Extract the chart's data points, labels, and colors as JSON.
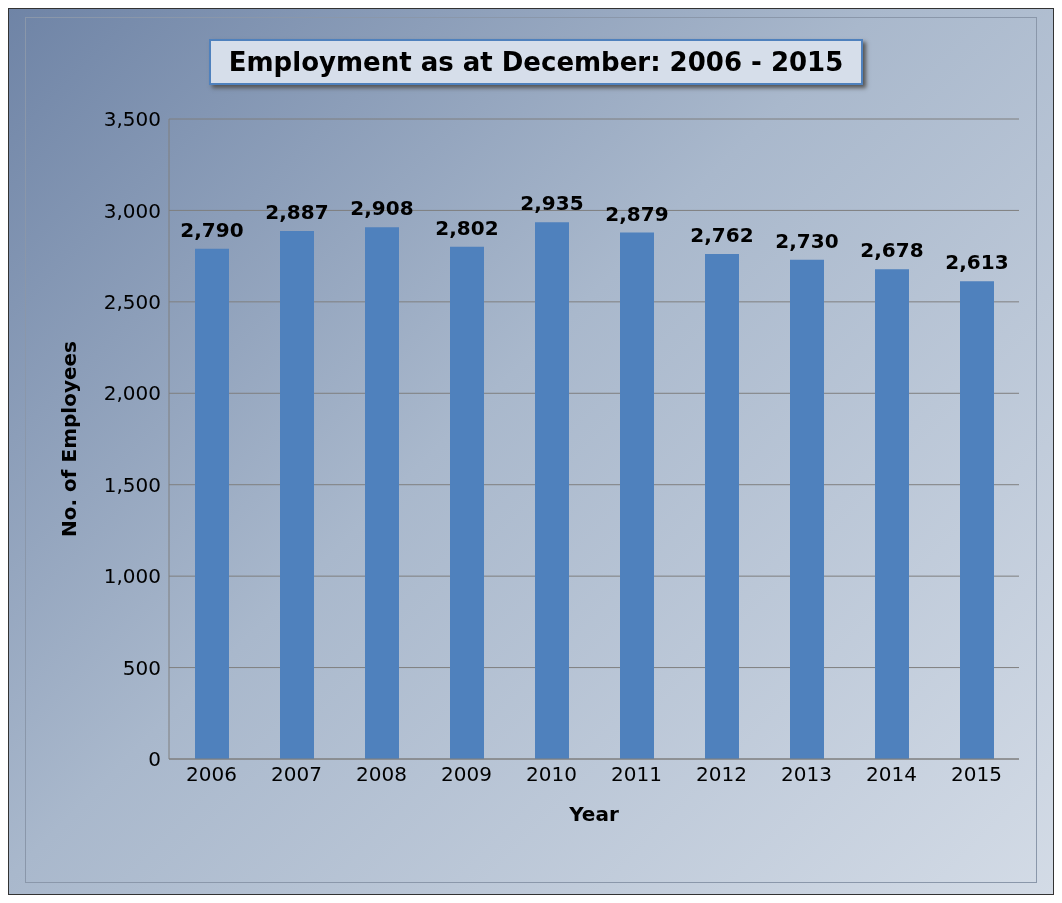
{
  "chart_data": {
    "type": "bar",
    "title": "Employment as at December: 2006 - 2015",
    "xlabel": "Year",
    "ylabel": "No. of Employees",
    "categories": [
      "2006",
      "2007",
      "2008",
      "2009",
      "2010",
      "2011",
      "2012",
      "2013",
      "2014",
      "2015"
    ],
    "values": [
      2790,
      2887,
      2908,
      2802,
      2935,
      2879,
      2762,
      2730,
      2678,
      2613
    ],
    "color": "#4f81bd",
    "value_labels": [
      "2,790",
      "2,887",
      "2,908",
      "2,802",
      "2,935",
      "2,879",
      "2,762",
      "2,730",
      "2,678",
      "2,613"
    ],
    "ylim": [
      0,
      3500
    ],
    "yticks": [
      0,
      500,
      {
        "value": 1000,
        "label": "1,000"
      },
      {
        "value": 1500,
        "label": "1,500"
      },
      {
        "value": 2000,
        "label": "2,000"
      },
      {
        "value": 2500,
        "label": "2,500"
      },
      {
        "value": 3000,
        "label": "3,000"
      },
      {
        "value": 3500,
        "label": "3,500"
      }
    ],
    "grid": "y"
  }
}
